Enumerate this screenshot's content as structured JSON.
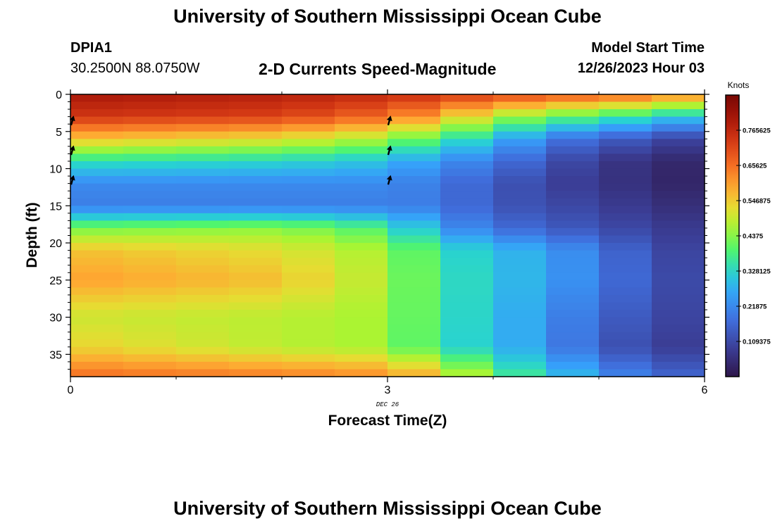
{
  "header": {
    "title": "University of Southern Mississippi Ocean Cube",
    "station_id": "DPIA1",
    "coords": "30.2500N  88.0750W",
    "subtitle": "2-D Currents Speed-Magnitude",
    "model_label": "Model Start Time",
    "model_time": "12/26/2023 Hour 03"
  },
  "footer": {
    "title": "University of Southern Mississippi Ocean Cube"
  },
  "colors": {
    "background": "#ffffff",
    "frame": "#000000",
    "arrow": "#000000"
  },
  "chart_data": {
    "type": "heatmap",
    "title": "2-D Currents Speed-Magnitude",
    "xlabel": "Forecast Time(Z)",
    "ylabel": "Depth (ft)",
    "date_label": "DEC 26",
    "xlim": [
      0,
      6
    ],
    "ylim": [
      0,
      38
    ],
    "y_inverted": true,
    "x_ticks": [
      0,
      3,
      6
    ],
    "x_tick_labels": [
      "0",
      "3",
      "6"
    ],
    "y_ticks": [
      0,
      5,
      10,
      15,
      20,
      25,
      30,
      35
    ],
    "y_tick_labels": [
      "0",
      "5",
      "10",
      "15",
      "20",
      "25",
      "30",
      "35"
    ],
    "colorbar": {
      "label": "Knots",
      "range": [
        0,
        0.875
      ],
      "ticks": [
        0.109375,
        0.21875,
        0.328125,
        0.4375,
        0.546875,
        0.65625,
        0.765625
      ],
      "tick_labels": [
        "0.109375",
        "0.21875",
        "0.328125",
        "0.4375",
        "0.546875",
        "0.65625",
        "0.765625"
      ]
    },
    "time_columns": [
      0.25,
      0.75,
      1.25,
      1.75,
      2.25,
      2.75,
      3.25,
      3.75,
      4.25,
      4.75,
      5.25,
      5.75
    ],
    "profiles": [
      {
        "t": 0.0,
        "depths": [
          0,
          3,
          6,
          9,
          12,
          15,
          18,
          21,
          25,
          30,
          34,
          38
        ],
        "speeds": [
          0.8,
          0.74,
          0.56,
          0.35,
          0.22,
          0.2,
          0.42,
          0.56,
          0.6,
          0.5,
          0.54,
          0.66
        ]
      },
      {
        "t": 2.0,
        "depths": [
          0,
          3,
          6,
          9,
          12,
          15,
          18,
          21,
          25,
          30,
          34,
          38
        ],
        "speeds": [
          0.78,
          0.72,
          0.52,
          0.33,
          0.22,
          0.2,
          0.44,
          0.52,
          0.56,
          0.48,
          0.48,
          0.64
        ]
      },
      {
        "t": 3.0,
        "depths": [
          0,
          3,
          6,
          9,
          12,
          15,
          18,
          21,
          25,
          30,
          34,
          38
        ],
        "speeds": [
          0.76,
          0.66,
          0.46,
          0.3,
          0.22,
          0.2,
          0.38,
          0.46,
          0.47,
          0.46,
          0.46,
          0.62
        ]
      },
      {
        "t": 3.5,
        "depths": [
          0,
          3,
          6,
          9,
          12,
          15,
          18,
          21,
          25,
          30,
          34,
          38
        ],
        "speeds": [
          0.74,
          0.58,
          0.37,
          0.23,
          0.19,
          0.2,
          0.25,
          0.35,
          0.36,
          0.36,
          0.35,
          0.56
        ]
      },
      {
        "t": 4.0,
        "depths": [
          0,
          3,
          6,
          9,
          12,
          15,
          18,
          21,
          25,
          30,
          34,
          38
        ],
        "speeds": [
          0.72,
          0.48,
          0.31,
          0.2,
          0.14,
          0.13,
          0.18,
          0.3,
          0.31,
          0.3,
          0.3,
          0.4
        ]
      },
      {
        "t": 4.5,
        "depths": [
          0,
          3,
          6,
          9,
          12,
          15,
          18,
          21,
          25,
          30,
          34,
          38
        ],
        "speeds": [
          0.7,
          0.42,
          0.2,
          0.13,
          0.1,
          0.12,
          0.15,
          0.26,
          0.26,
          0.24,
          0.24,
          0.34
        ]
      },
      {
        "t": 5.0,
        "depths": [
          0,
          3,
          6,
          9,
          12,
          15,
          18,
          21,
          25,
          30,
          34,
          38
        ],
        "speeds": [
          0.68,
          0.38,
          0.16,
          0.08,
          0.07,
          0.09,
          0.12,
          0.19,
          0.2,
          0.16,
          0.14,
          0.24
        ]
      },
      {
        "t": 5.5,
        "depths": [
          0,
          3,
          6,
          9,
          12,
          15,
          18,
          21,
          25,
          30,
          34,
          38
        ],
        "speeds": [
          0.66,
          0.34,
          0.12,
          0.05,
          0.05,
          0.07,
          0.09,
          0.12,
          0.13,
          0.12,
          0.1,
          0.18
        ]
      },
      {
        "t": 6.0,
        "depths": [
          0,
          3,
          6,
          9,
          12,
          15,
          18,
          21,
          25,
          30,
          34,
          38
        ],
        "speeds": [
          0.6,
          0.28,
          0.08,
          0.03,
          0.02,
          0.04,
          0.07,
          0.08,
          0.09,
          0.08,
          0.07,
          0.14
        ]
      }
    ],
    "vectors": [
      {
        "t": 0,
        "depth": 3.5,
        "angle_deg": 15
      },
      {
        "t": 0,
        "depth": 7.5,
        "angle_deg": 15
      },
      {
        "t": 0,
        "depth": 11.5,
        "angle_deg": 15
      },
      {
        "t": 3,
        "depth": 3.5,
        "angle_deg": 15
      },
      {
        "t": 3,
        "depth": 7.5,
        "angle_deg": 15
      },
      {
        "t": 3,
        "depth": 11.5,
        "angle_deg": 15
      }
    ]
  }
}
